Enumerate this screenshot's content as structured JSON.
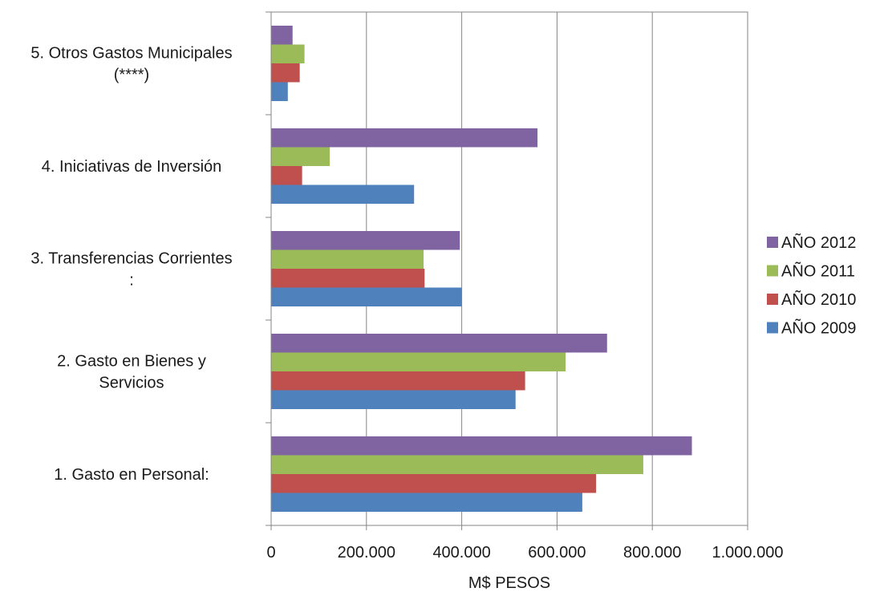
{
  "chart_data": {
    "type": "bar",
    "orientation": "horizontal",
    "categories": [
      [
        "1. Gasto en Personal:"
      ],
      [
        "2. Gasto en Bienes y",
        "Servicios"
      ],
      [
        "3. Transferencias Corrientes",
        ":"
      ],
      [
        "4. Iniciativas de Inversión"
      ],
      [
        "5. Otros  Gastos Municipales",
        "(****)"
      ]
    ],
    "series": [
      {
        "name": "AÑO 2009",
        "color": "#4F81BD",
        "values": [
          653000,
          513000,
          400000,
          300000,
          35000
        ]
      },
      {
        "name": "AÑO 2010",
        "color": "#C0504D",
        "values": [
          682000,
          533000,
          322000,
          65000,
          60000
        ]
      },
      {
        "name": "AÑO 2011",
        "color": "#9BBB59",
        "values": [
          781000,
          618000,
          320000,
          123000,
          70000
        ]
      },
      {
        "name": "AÑO 2012",
        "color": "#8064A2",
        "values": [
          883000,
          705000,
          396000,
          559000,
          45000
        ]
      }
    ],
    "xlabel": "M$ PESOS",
    "ylabel": "",
    "xlim": [
      0,
      1000000
    ],
    "x_ticks": [
      0,
      200000,
      400000,
      600000,
      800000,
      1000000
    ],
    "x_tick_labels": [
      "0",
      "200.000",
      "400.000",
      "600.000",
      "800.000",
      "1.000.000"
    ],
    "grid": "vertical",
    "legend_position": "right"
  }
}
